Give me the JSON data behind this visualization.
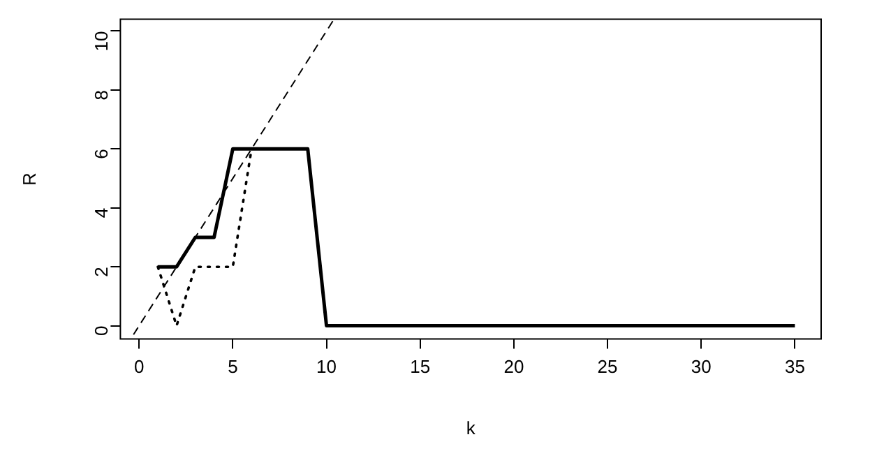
{
  "chart_data": {
    "type": "line",
    "xlabel": "k",
    "ylabel": "R",
    "xlim": [
      -1,
      36.4
    ],
    "ylim": [
      -0.45,
      10.4
    ],
    "xticks": [
      0,
      5,
      10,
      15,
      20,
      25,
      30,
      35
    ],
    "yticks": [
      0,
      2,
      4,
      6,
      8,
      10
    ],
    "grid": false,
    "legend": false,
    "marker": "none",
    "series": [
      {
        "color": "#000000",
        "line_style": "solid",
        "x": [
          1,
          2,
          3,
          4,
          5,
          6,
          7,
          8,
          9,
          10,
          11,
          12,
          13,
          14,
          15,
          16,
          17,
          18,
          19,
          20,
          21,
          22,
          23,
          24,
          25,
          26,
          27,
          28,
          29,
          30,
          31,
          32,
          33,
          34,
          35
        ],
        "values": [
          2,
          2,
          3,
          3,
          6,
          6,
          6,
          6,
          6,
          0,
          0,
          0,
          0,
          0,
          0,
          0,
          0,
          0,
          0,
          0,
          0,
          0,
          0,
          0,
          0,
          0,
          0,
          0,
          0,
          0,
          0,
          0,
          0,
          0,
          0
        ]
      },
      {
        "color": "#000000",
        "line_style": "dotted",
        "x": [
          1,
          2,
          3,
          4,
          5,
          6
        ],
        "values": [
          2,
          0,
          2,
          2,
          2,
          6
        ]
      },
      {
        "color": "#000000",
        "line_style": "dashed",
        "x": [
          -0.3,
          10.4
        ],
        "values": [
          -0.3,
          10.4
        ]
      }
    ]
  }
}
